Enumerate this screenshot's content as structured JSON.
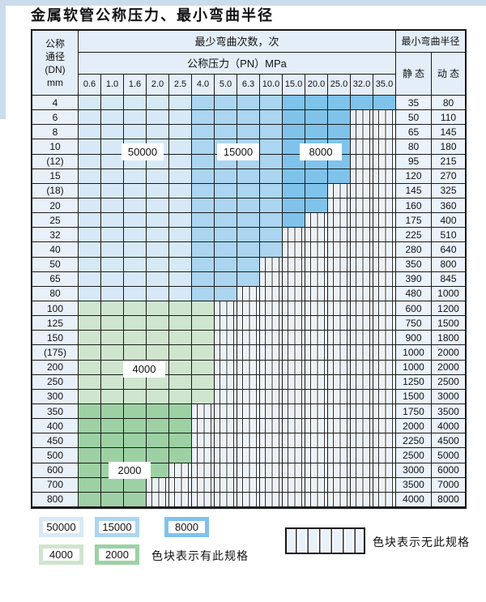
{
  "page_title": "金属软管公称压力、最小弯曲半径",
  "table": {
    "header": {
      "dn_lines": [
        "公称",
        "通径",
        "(DN)",
        "mm"
      ],
      "min_bend_cycles_label": "最少弯曲次数，次",
      "nominal_pressure_label": "公称压力（PN）MPa",
      "pressures": [
        "0.6",
        "1.0",
        "1.6",
        "2.0",
        "2.5",
        "4.0",
        "5.0",
        "6.3",
        "10.0",
        "15.0",
        "20.0",
        "25.0",
        "32.0",
        "35.0"
      ],
      "min_bend_radius_label": "最小弯曲半径",
      "static_label": "静 态",
      "dynamic_label": "动 态"
    },
    "cycle_bands_blue": [
      {
        "cycles": "50000",
        "pressure_cols": "0.6-2.5 MPa",
        "color": "#d7e9f7"
      },
      {
        "cycles": "15000",
        "pressure_cols": "4.0-10.0 MPa",
        "color": "#abd5f0"
      },
      {
        "cycles": "8000",
        "pressure_cols": "15.0-35.0 MPa",
        "color": "#7fc3eb"
      }
    ],
    "cycle_bands_green": [
      {
        "cycles": "4000",
        "dn_range": "100-300",
        "color": "#cfe5cd"
      },
      {
        "cycles": "2000",
        "dn_range": "350-800",
        "color": "#9dd1a4"
      }
    ],
    "rows": [
      {
        "dn": "4",
        "palette": "blue",
        "colored_through": 14,
        "static": "35",
        "dynamic": "80"
      },
      {
        "dn": "6",
        "palette": "blue",
        "colored_through": 12,
        "static": "50",
        "dynamic": "110"
      },
      {
        "dn": "8",
        "palette": "blue",
        "colored_through": 12,
        "static": "65",
        "dynamic": "145"
      },
      {
        "dn": "10",
        "palette": "blue",
        "colored_through": 12,
        "static": "80",
        "dynamic": "180"
      },
      {
        "dn": "(12)",
        "palette": "blue",
        "colored_through": 12,
        "static": "95",
        "dynamic": "215"
      },
      {
        "dn": "15",
        "palette": "blue",
        "colored_through": 12,
        "static": "120",
        "dynamic": "270"
      },
      {
        "dn": "(18)",
        "palette": "blue",
        "colored_through": 11,
        "static": "145",
        "dynamic": "325"
      },
      {
        "dn": "20",
        "palette": "blue",
        "colored_through": 11,
        "static": "160",
        "dynamic": "360"
      },
      {
        "dn": "25",
        "palette": "blue",
        "colored_through": 10,
        "static": "175",
        "dynamic": "400"
      },
      {
        "dn": "32",
        "palette": "blue",
        "colored_through": 9,
        "static": "225",
        "dynamic": "510"
      },
      {
        "dn": "40",
        "palette": "blue",
        "colored_through": 9,
        "static": "280",
        "dynamic": "640"
      },
      {
        "dn": "50",
        "palette": "blue",
        "colored_through": 8,
        "static": "350",
        "dynamic": "800"
      },
      {
        "dn": "65",
        "palette": "blue",
        "colored_through": 8,
        "static": "390",
        "dynamic": "845"
      },
      {
        "dn": "80",
        "palette": "blue",
        "colored_through": 7,
        "static": "480",
        "dynamic": "1000"
      },
      {
        "dn": "100",
        "palette": "green-4000",
        "colored_through": 6,
        "static": "600",
        "dynamic": "1200"
      },
      {
        "dn": "125",
        "palette": "green-4000",
        "colored_through": 6,
        "static": "750",
        "dynamic": "1500"
      },
      {
        "dn": "150",
        "palette": "green-4000",
        "colored_through": 6,
        "static": "900",
        "dynamic": "1800"
      },
      {
        "dn": "(175)",
        "palette": "green-4000",
        "colored_through": 6,
        "static": "1000",
        "dynamic": "2000"
      },
      {
        "dn": "200",
        "palette": "green-4000",
        "colored_through": 6,
        "static": "1000",
        "dynamic": "2000"
      },
      {
        "dn": "250",
        "palette": "green-4000",
        "colored_through": 6,
        "static": "1250",
        "dynamic": "2500"
      },
      {
        "dn": "300",
        "palette": "green-4000",
        "colored_through": 6,
        "static": "1500",
        "dynamic": "3000"
      },
      {
        "dn": "350",
        "palette": "green-2000",
        "colored_through": 5,
        "static": "1750",
        "dynamic": "3500"
      },
      {
        "dn": "400",
        "palette": "green-2000",
        "colored_through": 5,
        "static": "2000",
        "dynamic": "4000"
      },
      {
        "dn": "450",
        "palette": "green-2000",
        "colored_through": 5,
        "static": "2250",
        "dynamic": "4500"
      },
      {
        "dn": "500",
        "palette": "green-2000",
        "colored_through": 5,
        "static": "2500",
        "dynamic": "5000"
      },
      {
        "dn": "600",
        "palette": "green-2000",
        "colored_through": 4,
        "static": "3000",
        "dynamic": "6000"
      },
      {
        "dn": "700",
        "palette": "green-2000",
        "colored_through": 3,
        "static": "3500",
        "dynamic": "7000"
      },
      {
        "dn": "800",
        "palette": "green-2000",
        "colored_through": 3,
        "static": "4000",
        "dynamic": "8000"
      }
    ],
    "overlay_labels": [
      "50000",
      "15000",
      "8000",
      "4000",
      "2000"
    ]
  },
  "legend": {
    "has_spec_items": [
      {
        "label": "50000",
        "color": "#d7e9f7"
      },
      {
        "label": "15000",
        "color": "#abd5f0"
      },
      {
        "label": "8000",
        "color": "#7fc3eb"
      },
      {
        "label": "4000",
        "color": "#cfe5cd"
      },
      {
        "label": "2000",
        "color": "#9dd1a4"
      }
    ],
    "has_spec_text": "色块表示有此规格",
    "no_spec_text": "色块表示无此规格"
  },
  "colors": {
    "hatch_bg": "#e9f1fa",
    "header_bg": "#e3eef9",
    "label_col_bg": "#e8f1fa",
    "value_col_bg": "#eaf2fb",
    "grid_line": "#1a1a1a",
    "page_edge": "#cbdcec"
  }
}
